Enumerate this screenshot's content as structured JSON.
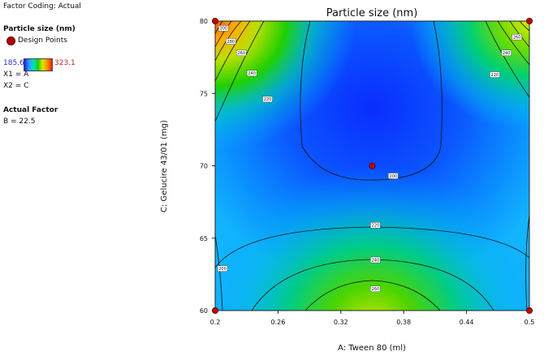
{
  "sidebar": {
    "factor_coding": "Factor Coding: Actual",
    "response_title": "Particle size (nm)",
    "design_points_label": "Design Points",
    "range_min": "185.6",
    "range_max": "323.1",
    "x1": "X1 = A",
    "x2": "X2 = C",
    "actual_factor_title": "Actual Factor",
    "actual_factor_value": "B = 22.5"
  },
  "colors": {
    "min_color": "#1a1aff",
    "max_color": "#ff2000",
    "design_point": "#c00000"
  },
  "chart_data": {
    "type": "contour",
    "title": "Particle size (nm)",
    "xlabel": "A: Tween 80 (ml)",
    "ylabel": "C: Gelucire 43/01 (mg)",
    "xlim": [
      0.2,
      0.5
    ],
    "ylim": [
      60,
      80
    ],
    "xticks": [
      "0.2",
      "0.26",
      "0.32",
      "0.38",
      "0.44",
      "0.5"
    ],
    "yticks": [
      "60",
      "65",
      "70",
      "75",
      "80"
    ],
    "color_range": [
      185.6,
      323.1
    ],
    "contour_labels": [
      {
        "value": "300",
        "x": 0.208,
        "y": 79.5
      },
      {
        "value": "280",
        "x": 0.215,
        "y": 78.6
      },
      {
        "value": "260",
        "x": 0.225,
        "y": 77.8
      },
      {
        "value": "240",
        "x": 0.235,
        "y": 76.4
      },
      {
        "value": "220",
        "x": 0.25,
        "y": 74.6
      },
      {
        "value": "260",
        "x": 0.488,
        "y": 78.9
      },
      {
        "value": "240",
        "x": 0.478,
        "y": 77.8
      },
      {
        "value": "220",
        "x": 0.467,
        "y": 76.3
      },
      {
        "value": "200",
        "x": 0.37,
        "y": 69.3
      },
      {
        "value": "220",
        "x": 0.353,
        "y": 65.9
      },
      {
        "value": "240",
        "x": 0.353,
        "y": 63.5
      },
      {
        "value": "260",
        "x": 0.353,
        "y": 61.5
      },
      {
        "value": "200",
        "x": 0.207,
        "y": 62.9
      }
    ],
    "design_points": [
      {
        "x": 0.2,
        "y": 80
      },
      {
        "x": 0.5,
        "y": 80
      },
      {
        "x": 0.2,
        "y": 60
      },
      {
        "x": 0.5,
        "y": 60
      },
      {
        "x": 0.35,
        "y": 70
      }
    ]
  }
}
